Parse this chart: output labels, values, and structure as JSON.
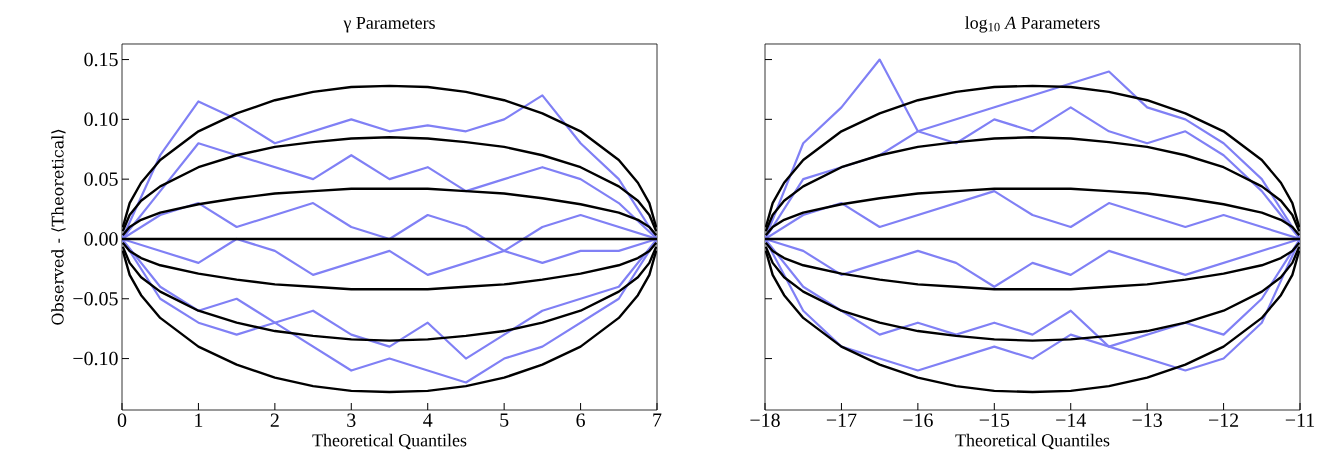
{
  "chart_data": [
    {
      "type": "line",
      "title": "γ Parameters",
      "xlabel": "Theoretical Quantiles",
      "ylabel": "Observed - ⟨Theoretical⟩",
      "xlim": [
        0,
        7
      ],
      "ylim": [
        -0.143,
        0.163
      ],
      "xticks": [
        0,
        1,
        2,
        3,
        4,
        5,
        6,
        7
      ],
      "yticks": [
        {
          "value": -0.1,
          "label": "−0.10"
        },
        {
          "value": -0.05,
          "label": "−0.05"
        },
        {
          "value": 0,
          "label": "0.00"
        },
        {
          "value": 0.05,
          "label": "0.05"
        },
        {
          "value": 0.1,
          "label": "0.10"
        },
        {
          "value": 0.15,
          "label": "0.15"
        }
      ],
      "x": [
        0.01,
        0.1,
        0.25,
        0.5,
        1,
        1.5,
        2,
        2.5,
        3,
        3.5,
        4,
        4.5,
        5,
        5.5,
        6,
        6.5,
        6.75,
        6.9,
        6.99
      ],
      "series": [
        {
          "color": "#8080f5",
          "x": [
            0,
            0.5,
            1,
            1.5,
            2,
            2.5,
            3,
            3.5,
            4,
            4.5,
            5,
            5.5,
            6,
            6.5,
            7
          ],
          "values": [
            0,
            0.07,
            0.115,
            0.1,
            0.08,
            0.09,
            0.1,
            0.09,
            0.095,
            0.09,
            0.1,
            0.12,
            0.08,
            0.05,
            0
          ]
        },
        {
          "color": "#8080f5",
          "x": [
            0,
            0.5,
            1,
            1.5,
            2,
            2.5,
            3,
            3.5,
            4,
            4.5,
            5,
            5.5,
            6,
            6.5,
            7
          ],
          "values": [
            0,
            0.04,
            0.08,
            0.07,
            0.06,
            0.05,
            0.07,
            0.05,
            0.06,
            0.04,
            0.05,
            0.06,
            0.05,
            0.03,
            0
          ]
        },
        {
          "color": "#8080f5",
          "x": [
            0,
            0.5,
            1,
            1.5,
            2,
            2.5,
            3,
            3.5,
            4,
            4.5,
            5,
            5.5,
            6,
            6.5,
            7
          ],
          "values": [
            0,
            0.02,
            0.03,
            0.01,
            0.02,
            0.03,
            0.01,
            0,
            0.02,
            0.01,
            -0.01,
            0.01,
            0.02,
            0.01,
            0
          ]
        },
        {
          "color": "#8080f5",
          "x": [
            0,
            0.5,
            1,
            1.5,
            2,
            2.5,
            3,
            3.5,
            4,
            4.5,
            5,
            5.5,
            6,
            6.5,
            7
          ],
          "values": [
            0,
            -0.01,
            -0.02,
            0,
            -0.01,
            -0.03,
            -0.02,
            -0.01,
            -0.03,
            -0.02,
            -0.01,
            -0.02,
            -0.01,
            -0.01,
            0
          ]
        },
        {
          "color": "#8080f5",
          "x": [
            0,
            0.5,
            1,
            1.5,
            2,
            2.5,
            3,
            3.5,
            4,
            4.5,
            5,
            5.5,
            6,
            6.5,
            7
          ],
          "values": [
            0,
            -0.04,
            -0.06,
            -0.05,
            -0.07,
            -0.06,
            -0.08,
            -0.09,
            -0.07,
            -0.1,
            -0.08,
            -0.06,
            -0.05,
            -0.04,
            0
          ]
        },
        {
          "color": "#8080f5",
          "x": [
            0,
            0.5,
            1,
            1.5,
            2,
            2.5,
            3,
            3.5,
            4,
            4.5,
            5,
            5.5,
            6,
            6.5,
            7
          ],
          "values": [
            0,
            -0.05,
            -0.07,
            -0.08,
            -0.07,
            -0.09,
            -0.11,
            -0.1,
            -0.11,
            -0.12,
            -0.1,
            -0.09,
            -0.07,
            -0.05,
            0
          ]
        },
        {
          "color": "#000000",
          "values": [
            0.0097,
            0.03,
            0.047,
            0.066,
            0.09,
            0.105,
            0.116,
            0.123,
            0.127,
            0.128,
            0.127,
            0.123,
            0.116,
            0.105,
            0.09,
            0.066,
            0.047,
            0.03,
            0.0097
          ]
        },
        {
          "color": "#000000",
          "values": [
            0.0064,
            0.02,
            0.032,
            0.044,
            0.06,
            0.07,
            0.077,
            0.081,
            0.084,
            0.085,
            0.084,
            0.081,
            0.077,
            0.07,
            0.06,
            0.044,
            0.032,
            0.02,
            0.0064
          ]
        },
        {
          "color": "#000000",
          "values": [
            0.0032,
            0.01,
            0.016,
            0.022,
            0.029,
            0.034,
            0.038,
            0.04,
            0.042,
            0.042,
            0.042,
            0.04,
            0.038,
            0.034,
            0.029,
            0.022,
            0.016,
            0.01,
            0.0032
          ]
        },
        {
          "color": "#000000",
          "x": [
            0,
            7
          ],
          "values": [
            0,
            0
          ]
        },
        {
          "color": "#000000",
          "values": [
            -0.0032,
            -0.01,
            -0.016,
            -0.022,
            -0.029,
            -0.034,
            -0.038,
            -0.04,
            -0.042,
            -0.042,
            -0.042,
            -0.04,
            -0.038,
            -0.034,
            -0.029,
            -0.022,
            -0.016,
            -0.01,
            -0.0032
          ]
        },
        {
          "color": "#000000",
          "values": [
            -0.0064,
            -0.02,
            -0.032,
            -0.044,
            -0.06,
            -0.07,
            -0.077,
            -0.081,
            -0.084,
            -0.085,
            -0.084,
            -0.081,
            -0.077,
            -0.07,
            -0.06,
            -0.044,
            -0.032,
            -0.02,
            -0.0064
          ]
        },
        {
          "color": "#000000",
          "values": [
            -0.0097,
            -0.03,
            -0.047,
            -0.066,
            -0.09,
            -0.105,
            -0.116,
            -0.123,
            -0.127,
            -0.128,
            -0.127,
            -0.123,
            -0.116,
            -0.105,
            -0.09,
            -0.066,
            -0.047,
            -0.03,
            -0.0097
          ]
        }
      ]
    },
    {
      "type": "line",
      "title": "log$_{10}$ *A* Parameters",
      "xlabel": "Theoretical Quantiles",
      "tick_labels": "x",
      "xlim": [
        -18,
        -11
      ],
      "ylim": [
        -0.143,
        0.163
      ],
      "xticks": [
        {
          "value": -18,
          "label": "−18"
        },
        {
          "value": -17,
          "label": "−17"
        },
        {
          "value": -16,
          "label": "−16"
        },
        {
          "value": -15,
          "label": "−15"
        },
        {
          "value": -14,
          "label": "−14"
        },
        {
          "value": -13,
          "label": "−13"
        },
        {
          "value": -12,
          "label": "−12"
        },
        {
          "value": -11,
          "label": "−11"
        }
      ],
      "yticks": [
        {
          "value": -0.1,
          "label": null
        },
        {
          "value": -0.05,
          "label": null
        },
        {
          "value": 0,
          "label": null
        },
        {
          "value": 0.05,
          "label": null
        },
        {
          "value": 0.1,
          "label": null
        },
        {
          "value": 0.15,
          "label": null
        }
      ],
      "x": [
        -17.99,
        -17.9,
        -17.75,
        -17.5,
        -17,
        -16.5,
        -16,
        -15.5,
        -15,
        -14.5,
        -14,
        -13.5,
        -13,
        -12.5,
        -12,
        -11.5,
        -11.25,
        -11.1,
        -11.01
      ],
      "series": [
        {
          "color": "#8080f5",
          "x": [
            -18,
            -17.5,
            -17,
            -16.5,
            -16,
            -15.5,
            -15,
            -14.5,
            -14,
            -13.5,
            -13,
            -12.5,
            -12,
            -11.5,
            -11
          ],
          "values": [
            0,
            0.08,
            0.11,
            0.15,
            0.09,
            0.1,
            0.11,
            0.12,
            0.13,
            0.14,
            0.11,
            0.1,
            0.08,
            0.05,
            0
          ]
        },
        {
          "color": "#8080f5",
          "x": [
            -18,
            -17.5,
            -17,
            -16.5,
            -16,
            -15.5,
            -15,
            -14.5,
            -14,
            -13.5,
            -13,
            -12.5,
            -12,
            -11.5,
            -11
          ],
          "values": [
            0,
            0.05,
            0.06,
            0.07,
            0.09,
            0.08,
            0.1,
            0.09,
            0.11,
            0.09,
            0.08,
            0.09,
            0.07,
            0.04,
            0
          ]
        },
        {
          "color": "#8080f5",
          "x": [
            -18,
            -17.5,
            -17,
            -16.5,
            -16,
            -15.5,
            -15,
            -14.5,
            -14,
            -13.5,
            -13,
            -12.5,
            -12,
            -11.5,
            -11
          ],
          "values": [
            0,
            0.02,
            0.03,
            0.01,
            0.02,
            0.03,
            0.04,
            0.02,
            0.01,
            0.03,
            0.02,
            0.01,
            0.02,
            0.01,
            0
          ]
        },
        {
          "color": "#8080f5",
          "x": [
            -18,
            -17.5,
            -17,
            -16.5,
            -16,
            -15.5,
            -15,
            -14.5,
            -14,
            -13.5,
            -13,
            -12.5,
            -12,
            -11.5,
            -11
          ],
          "values": [
            0,
            -0.01,
            -0.03,
            -0.02,
            -0.01,
            -0.02,
            -0.04,
            -0.02,
            -0.03,
            -0.01,
            -0.02,
            -0.03,
            -0.02,
            -0.01,
            0
          ]
        },
        {
          "color": "#8080f5",
          "x": [
            -18,
            -17.5,
            -17,
            -16.5,
            -16,
            -15.5,
            -15,
            -14.5,
            -14,
            -13.5,
            -13,
            -12.5,
            -12,
            -11.5,
            -11
          ],
          "values": [
            0,
            -0.04,
            -0.06,
            -0.08,
            -0.07,
            -0.08,
            -0.07,
            -0.08,
            -0.06,
            -0.09,
            -0.08,
            -0.07,
            -0.08,
            -0.05,
            0
          ]
        },
        {
          "color": "#8080f5",
          "x": [
            -18,
            -17.5,
            -17,
            -16.5,
            -16,
            -15.5,
            -15,
            -14.5,
            -14,
            -13.5,
            -13,
            -12.5,
            -12,
            -11.5,
            -11
          ],
          "values": [
            0,
            -0.06,
            -0.09,
            -0.1,
            -0.11,
            -0.1,
            -0.09,
            -0.1,
            -0.08,
            -0.09,
            -0.1,
            -0.11,
            -0.1,
            -0.07,
            0
          ]
        },
        {
          "color": "#000000",
          "values": [
            0.0097,
            0.03,
            0.047,
            0.066,
            0.09,
            0.105,
            0.116,
            0.123,
            0.127,
            0.128,
            0.127,
            0.123,
            0.116,
            0.105,
            0.09,
            0.066,
            0.047,
            0.03,
            0.0097
          ]
        },
        {
          "color": "#000000",
          "values": [
            0.0064,
            0.02,
            0.032,
            0.044,
            0.06,
            0.07,
            0.077,
            0.081,
            0.084,
            0.085,
            0.084,
            0.081,
            0.077,
            0.07,
            0.06,
            0.044,
            0.032,
            0.02,
            0.0064
          ]
        },
        {
          "color": "#000000",
          "values": [
            0.0032,
            0.01,
            0.016,
            0.022,
            0.029,
            0.034,
            0.038,
            0.04,
            0.042,
            0.042,
            0.042,
            0.04,
            0.038,
            0.034,
            0.029,
            0.022,
            0.016,
            0.01,
            0.0032
          ]
        },
        {
          "color": "#000000",
          "x": [
            -18,
            -11
          ],
          "values": [
            0,
            0
          ]
        },
        {
          "color": "#000000",
          "values": [
            -0.0032,
            -0.01,
            -0.016,
            -0.022,
            -0.029,
            -0.034,
            -0.038,
            -0.04,
            -0.042,
            -0.042,
            -0.042,
            -0.04,
            -0.038,
            -0.034,
            -0.029,
            -0.022,
            -0.016,
            -0.01,
            -0.0032
          ]
        },
        {
          "color": "#000000",
          "values": [
            -0.0064,
            -0.02,
            -0.032,
            -0.044,
            -0.06,
            -0.07,
            -0.077,
            -0.081,
            -0.084,
            -0.085,
            -0.084,
            -0.081,
            -0.077,
            -0.07,
            -0.06,
            -0.044,
            -0.032,
            -0.02,
            -0.0064
          ]
        },
        {
          "color": "#000000",
          "values": [
            -0.0097,
            -0.03,
            -0.047,
            -0.066,
            -0.09,
            -0.105,
            -0.116,
            -0.123,
            -0.127,
            -0.128,
            -0.127,
            -0.123,
            -0.116,
            -0.105,
            -0.09,
            -0.066,
            -0.047,
            -0.03,
            -0.0097
          ]
        }
      ]
    }
  ]
}
